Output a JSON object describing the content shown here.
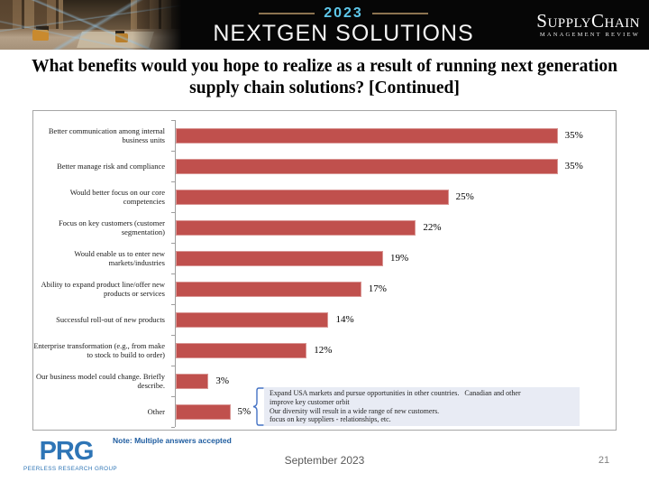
{
  "header": {
    "year": "2023",
    "brand": "NEXTGEN SOLUTIONS",
    "logo_name": "SupplyChain",
    "logo_sub": "MANAGEMENT REVIEW"
  },
  "chart_data": {
    "type": "bar",
    "orientation": "horizontal",
    "title": "What benefits would you hope to realize as a result of running next generation supply chain solutions? [Continued]",
    "categories": [
      "Better communication among internal business units",
      "Better manage risk and compliance",
      "Would better focus on our core competencies",
      "Focus on key customers (customer segmentation)",
      "Would enable us to enter new markets/industries",
      "Ability to expand product line/offer new products or services",
      "Successful roll-out of new products",
      "Enterprise transformation (e.g., from make to stock to build to order)",
      "Our business model could change. Briefly describe.",
      "Other"
    ],
    "values": [
      35,
      35,
      25,
      22,
      19,
      17,
      14,
      12,
      3,
      5
    ],
    "value_labels": [
      "35%",
      "35%",
      "25%",
      "22%",
      "19%",
      "17%",
      "14%",
      "12%",
      "3%",
      "5%"
    ],
    "xlim": [
      0,
      38
    ],
    "grid": false,
    "legend": false,
    "bar_color": "#c0504d",
    "annotation": {
      "lines": [
        "Expand USA markets and pursue opportunities in other countries.   Canadian and other",
        "improve key customer orbit",
        "Our diversity will result in a wide range of new customers.",
        "focus on key suppliers - relationships, etc."
      ]
    }
  },
  "note": "Note: Multiple answers accepted",
  "footer": {
    "logo_text": "PRG",
    "logo_subtext": "PEERLESS RESEARCH GROUP",
    "date": "September 2023",
    "page_number": "21"
  }
}
